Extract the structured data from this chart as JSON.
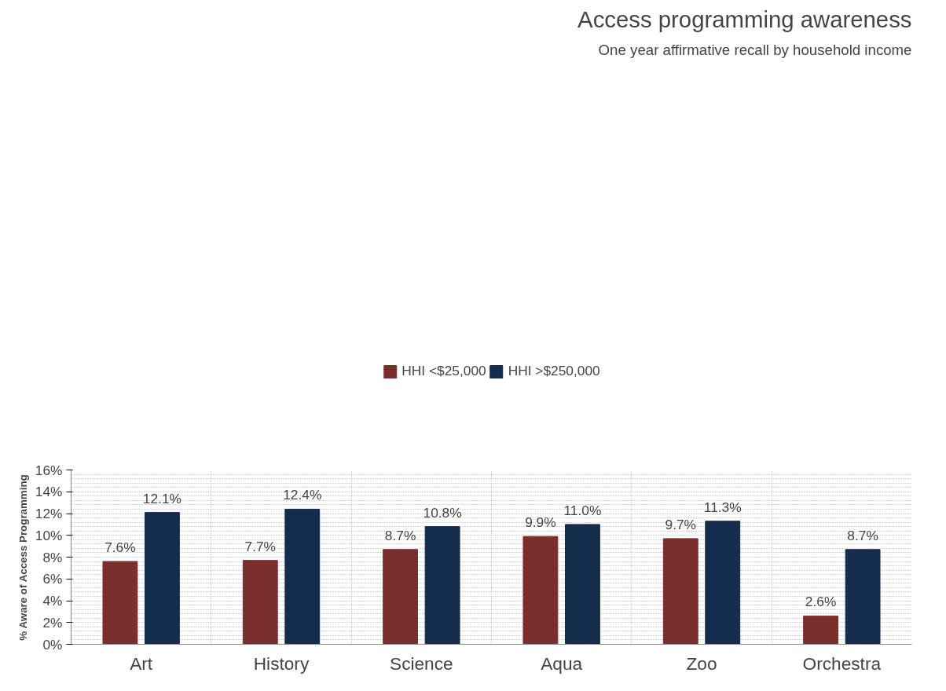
{
  "chart_data": {
    "type": "bar",
    "title": "Access programming awareness",
    "subtitle": "One year affirmative recall by household income",
    "ylabel": "% Aware of Access Programming",
    "categories": [
      "Art",
      "History",
      "Science",
      "Aqua",
      "Zoo",
      "Orchestra"
    ],
    "series": [
      {
        "name": "HHI <$25,000",
        "color": "#7b2f2d",
        "values": [
          7.6,
          7.7,
          8.7,
          9.9,
          9.7,
          2.6
        ],
        "value_labels": [
          "7.6%",
          "7.7%",
          "8.7%",
          "9.9%",
          "9.7%",
          "2.6%"
        ]
      },
      {
        "name": "HHI >$250,000",
        "color": "#142d4c",
        "values": [
          12.1,
          12.4,
          10.8,
          11.0,
          11.3,
          8.7
        ],
        "value_labels": [
          "12.1%",
          "12.4%",
          "10.8%",
          "11.0%",
          "11.3%",
          "8.7%"
        ]
      }
    ],
    "ylim": [
      0,
      16
    ],
    "yticks": [
      {
        "value": 0,
        "label": "0%"
      },
      {
        "value": 2,
        "label": "2%"
      },
      {
        "value": 4,
        "label": "4%"
      },
      {
        "value": 6,
        "label": "6%"
      },
      {
        "value": 8,
        "label": "8%"
      },
      {
        "value": 10,
        "label": "10%"
      },
      {
        "value": 12,
        "label": "12%"
      },
      {
        "value": 14,
        "label": "14%"
      },
      {
        "value": 16,
        "label": "16%"
      }
    ],
    "grid": true,
    "legend": "top"
  }
}
